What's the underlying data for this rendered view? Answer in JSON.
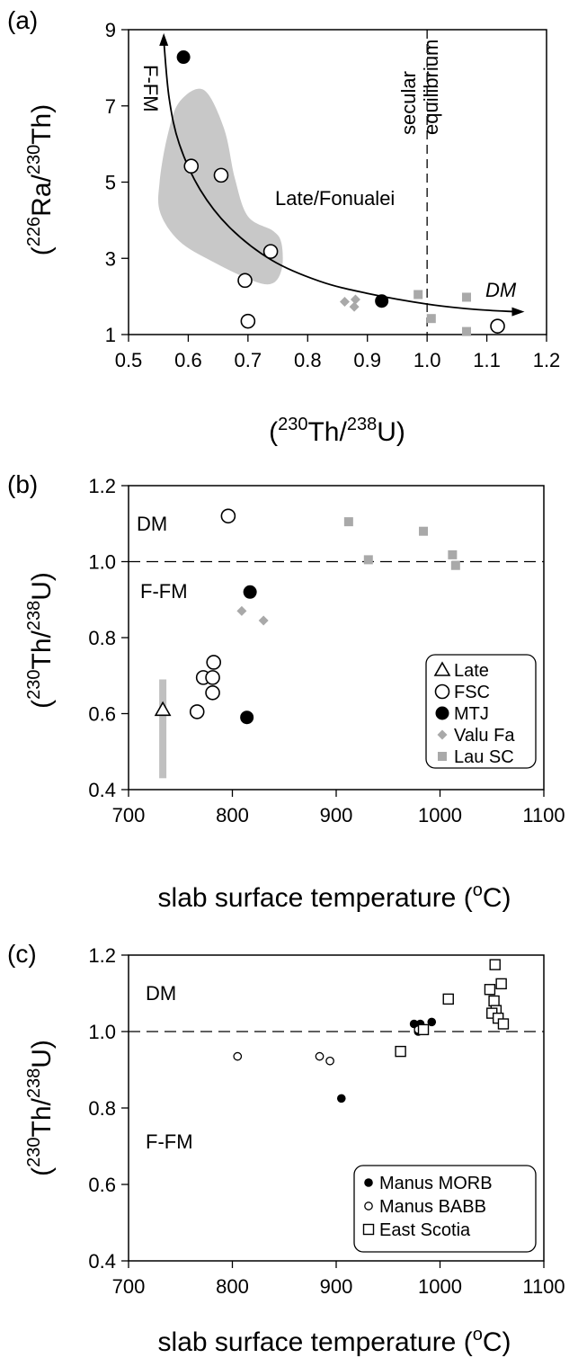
{
  "colors": {
    "gray": "#a9a9a9",
    "shade": "#c8c8c8",
    "black": "#000000"
  },
  "chart_data": [
    {
      "panel": "(a)",
      "type": "scatter",
      "xlabel": {
        "open": "(",
        "sup1": "230",
        "mid": "Th/",
        "sup2": "238",
        "end": "U)"
      },
      "ylabel": {
        "open": "(",
        "sup1": "226",
        "mid": "Ra/",
        "sup2": "230",
        "end": "Th)"
      },
      "xlim": [
        0.5,
        1.2
      ],
      "ylim": [
        1,
        9
      ],
      "xticks": [
        "0.5",
        "0.6",
        "0.7",
        "0.8",
        "0.9",
        "1.0",
        "1.1",
        "1.2"
      ],
      "yticks": [
        "1",
        "3",
        "5",
        "7",
        "9"
      ],
      "reference_line": {
        "x": 1.0,
        "label_line1": "secular",
        "label_line2": "equilibrium"
      },
      "annotations": {
        "ffm": "F-FM",
        "dm": "DM",
        "region": "Late/Fonualei"
      },
      "series": [
        {
          "marker": "open-circle",
          "points": [
            [
              0.605,
              5.42
            ],
            [
              0.655,
              5.18
            ],
            [
              0.738,
              3.18
            ],
            [
              0.695,
              2.42
            ],
            [
              0.7,
              1.35
            ],
            [
              1.118,
              1.22
            ]
          ]
        },
        {
          "marker": "filled-circle",
          "points": [
            [
              0.592,
              8.28
            ],
            [
              0.924,
              1.88
            ]
          ]
        },
        {
          "marker": "gray-diamond",
          "points": [
            [
              0.862,
              1.86
            ],
            [
              0.88,
              1.92
            ],
            [
              0.878,
              1.73
            ]
          ]
        },
        {
          "marker": "gray-square",
          "points": [
            [
              0.985,
              2.05
            ],
            [
              1.007,
              1.42
            ],
            [
              1.066,
              1.98
            ],
            [
              1.066,
              1.08
            ]
          ]
        }
      ]
    },
    {
      "panel": "(b)",
      "type": "scatter",
      "xlabel": {
        "text": "slab surface temperature (",
        "sup": "o",
        "end": "C)"
      },
      "ylabel": {
        "open": "(",
        "sup1": "230",
        "mid": "Th/",
        "sup2": "238",
        "end": "U)"
      },
      "xlim": [
        700,
        1100
      ],
      "ylim": [
        0.4,
        1.2
      ],
      "xticks": [
        "700",
        "800",
        "900",
        "1000",
        "1100"
      ],
      "yticks": [
        "0.4",
        "0.6",
        "0.8",
        "1.0",
        "1.2"
      ],
      "reference_line": {
        "y": 1.0
      },
      "annotations": {
        "dm": "DM",
        "ffm": "F-FM"
      },
      "legend": [
        "Late",
        "FSC",
        "MTJ",
        "Valu Fa",
        "Lau SC"
      ],
      "series": [
        {
          "name": "Late",
          "marker": "open-triangle",
          "points": [
            [
              733,
              0.61
            ]
          ],
          "range": [
            0.43,
            0.69
          ]
        },
        {
          "name": "FSC",
          "marker": "open-circle",
          "points": [
            [
              796,
              1.12
            ],
            [
              782,
              0.735
            ],
            [
              772,
              0.695
            ],
            [
              781,
              0.695
            ],
            [
              781,
              0.655
            ],
            [
              766,
              0.605
            ]
          ]
        },
        {
          "name": "MTJ",
          "marker": "filled-circle",
          "points": [
            [
              817,
              0.92
            ],
            [
              814,
              0.59
            ]
          ]
        },
        {
          "name": "Valu Fa",
          "marker": "gray-diamond",
          "points": [
            [
              809,
              0.87
            ],
            [
              830,
              0.845
            ]
          ]
        },
        {
          "name": "Lau SC",
          "marker": "gray-square",
          "points": [
            [
              912,
              1.105
            ],
            [
              984,
              1.08
            ],
            [
              931,
              1.005
            ],
            [
              1012,
              1.018
            ],
            [
              1015,
              0.99
            ]
          ]
        }
      ]
    },
    {
      "panel": "(c)",
      "type": "scatter",
      "xlabel": {
        "text": "slab surface temperature (",
        "sup": "o",
        "end": "C)"
      },
      "ylabel": {
        "open": "(",
        "sup1": "230",
        "mid": "Th/",
        "sup2": "238",
        "end": "U)"
      },
      "xlim": [
        700,
        1100
      ],
      "ylim": [
        0.4,
        1.2
      ],
      "xticks": [
        "700",
        "800",
        "900",
        "1000",
        "1100"
      ],
      "yticks": [
        "0.4",
        "0.6",
        "0.8",
        "1.0",
        "1.2"
      ],
      "reference_line": {
        "y": 1.0
      },
      "annotations": {
        "dm": "DM",
        "ffm": "F-FM"
      },
      "legend": [
        "Manus MORB",
        "Manus BABB",
        "East Scotia"
      ],
      "series": [
        {
          "name": "Manus MORB",
          "marker": "small-filled-circle",
          "points": [
            [
              975,
              1.02
            ],
            [
              981,
              1.02
            ],
            [
              992,
              1.025
            ],
            [
              905,
              0.825
            ],
            [
              979,
              1.0
            ]
          ]
        },
        {
          "name": "Manus BABB",
          "marker": "small-open-circle",
          "points": [
            [
              805,
              0.935
            ],
            [
              884,
              0.935
            ],
            [
              894,
              0.923
            ],
            [
              979,
              1.005
            ]
          ]
        },
        {
          "name": "East Scotia",
          "marker": "open-square",
          "points": [
            [
              1053,
              1.175
            ],
            [
              1059,
              1.125
            ],
            [
              1048,
              1.11
            ],
            [
              1008,
              1.085
            ],
            [
              1052,
              1.08
            ],
            [
              1054,
              1.055
            ],
            [
              1050,
              1.048
            ],
            [
              1056,
              1.035
            ],
            [
              1061,
              1.02
            ],
            [
              984,
              1.005
            ],
            [
              962,
              0.948
            ]
          ]
        }
      ]
    }
  ]
}
